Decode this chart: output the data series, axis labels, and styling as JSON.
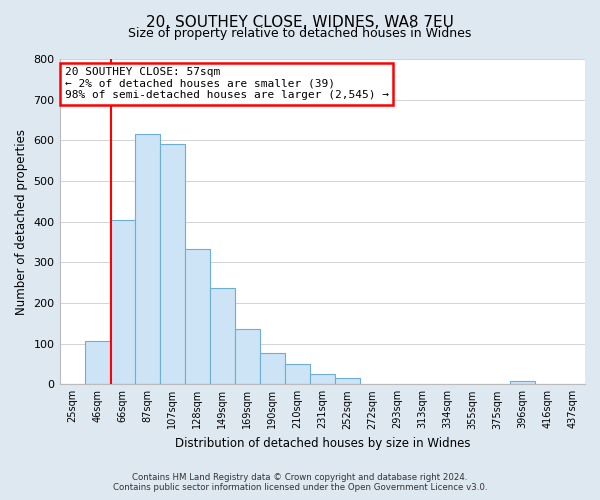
{
  "title": "20, SOUTHEY CLOSE, WIDNES, WA8 7EU",
  "subtitle": "Size of property relative to detached houses in Widnes",
  "xlabel": "Distribution of detached houses by size in Widnes",
  "ylabel": "Number of detached properties",
  "bar_labels": [
    "25sqm",
    "46sqm",
    "66sqm",
    "87sqm",
    "107sqm",
    "128sqm",
    "149sqm",
    "169sqm",
    "190sqm",
    "210sqm",
    "231sqm",
    "252sqm",
    "272sqm",
    "293sqm",
    "313sqm",
    "334sqm",
    "355sqm",
    "375sqm",
    "396sqm",
    "416sqm",
    "437sqm"
  ],
  "bar_heights": [
    0,
    107,
    403,
    615,
    590,
    333,
    236,
    135,
    76,
    49,
    25,
    15,
    0,
    0,
    0,
    0,
    0,
    0,
    7,
    0,
    0
  ],
  "bar_color": "#cce4f5",
  "bar_edge_color": "#6baed6",
  "property_line_label": "20 SOUTHEY CLOSE: 57sqm",
  "annotation_line1": "← 2% of detached houses are smaller (39)",
  "annotation_line2": "98% of semi-detached houses are larger (2,545) →",
  "annotation_box_color": "white",
  "annotation_box_edge_color": "red",
  "vline_color": "red",
  "ylim": [
    0,
    800
  ],
  "yticks": [
    0,
    100,
    200,
    300,
    400,
    500,
    600,
    700,
    800
  ],
  "footnote1": "Contains HM Land Registry data © Crown copyright and database right 2024.",
  "footnote2": "Contains public sector information licensed under the Open Government Licence v3.0.",
  "bg_color": "#dde8f0",
  "plot_bg_color": "white",
  "grid_color": "#cccccc",
  "title_fontsize": 11,
  "subtitle_fontsize": 9.5
}
